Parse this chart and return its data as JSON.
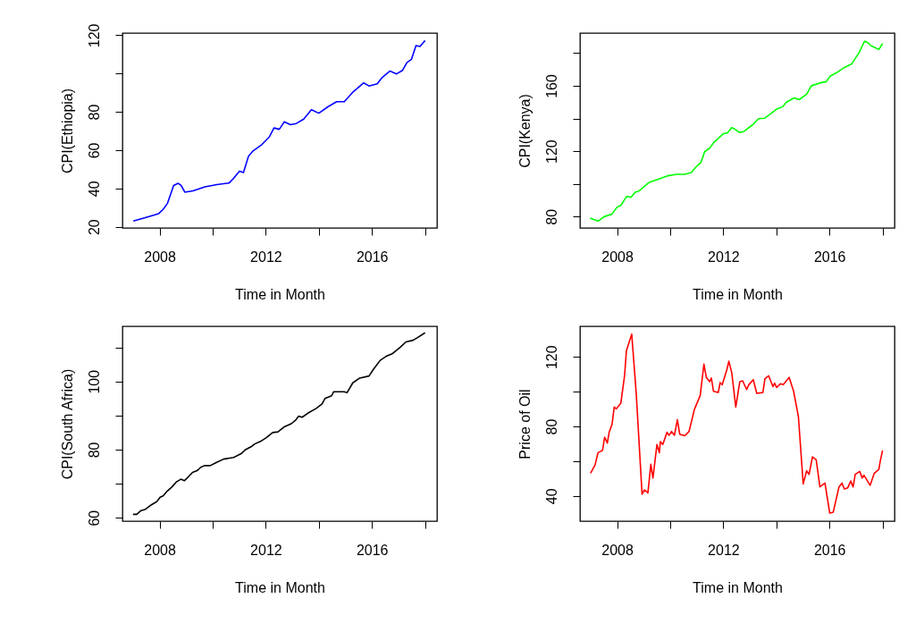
{
  "chart_data": [
    {
      "type": "line",
      "xlabel": "Time in Month",
      "ylabel": "CPI(Ethiopia)",
      "grid": false,
      "marker": "none",
      "line_style": "solid",
      "xlim": [
        2006.6,
        2018.45
      ],
      "ylim": [
        19.4,
        121.1
      ],
      "xticks": [
        2008,
        {
          "value": 2010,
          "label": null
        },
        2012,
        {
          "value": 2014,
          "label": null
        },
        2016,
        {
          "value": 2018,
          "label": null
        }
      ],
      "yticks": [
        20,
        40,
        60,
        80,
        {
          "value": 100,
          "label": null
        },
        120
      ],
      "x": [
        2007.01,
        2007.46,
        2007.97,
        2008.14,
        2008.3,
        2008.53,
        2008.7,
        2008.81,
        2008.95,
        2009.26,
        2009.71,
        2010.16,
        2010.62,
        2010.78,
        2011.01,
        2011.16,
        2011.35,
        2011.52,
        2011.86,
        2012.14,
        2012.31,
        2012.51,
        2012.7,
        2012.93,
        2013.15,
        2013.43,
        2013.72,
        2014.0,
        2014.34,
        2014.67,
        2014.96,
        2015.29,
        2015.69,
        2015.89,
        2016.2,
        2016.37,
        2016.68,
        2016.93,
        2017.15,
        2017.32,
        2017.49,
        2017.66,
        2017.81,
        2018.0
      ],
      "series": [
        {
          "color": "#0000ff",
          "values": [
            23.0,
            24.8,
            26.9,
            29.2,
            32.3,
            41.6,
            42.7,
            41.6,
            38.1,
            38.8,
            40.9,
            42.0,
            42.9,
            45.2,
            49.0,
            48.3,
            56.8,
            59.6,
            63.0,
            67.0,
            71.6,
            70.9,
            74.8,
            73.3,
            73.9,
            76.2,
            81.1,
            79.3,
            82.6,
            85.3,
            85.3,
            90.4,
            95.1,
            93.5,
            94.6,
            97.7,
            101.3,
            99.8,
            101.6,
            105.8,
            107.4,
            114.6,
            114.1,
            117.2
          ]
        }
      ]
    },
    {
      "type": "line",
      "xlabel": "Time in Month",
      "ylabel": "CPI(Kenya)",
      "grid": false,
      "marker": "none",
      "line_style": "solid",
      "xlim": [
        2006.6,
        2018.45
      ],
      "ylim": [
        73.1,
        192.2
      ],
      "xticks": [
        2008,
        {
          "value": 2010,
          "label": null
        },
        2012,
        {
          "value": 2014,
          "label": null
        },
        2016,
        {
          "value": 2018,
          "label": null
        }
      ],
      "yticks": [
        80,
        {
          "value": 100,
          "label": null
        },
        120,
        {
          "value": 140,
          "label": null
        },
        160,
        {
          "value": 180,
          "label": null
        }
      ],
      "x": [
        2006.98,
        2007.29,
        2007.51,
        2007.8,
        2008.0,
        2008.14,
        2008.36,
        2008.53,
        2008.68,
        2008.81,
        2009.21,
        2009.6,
        2009.92,
        2010.23,
        2010.56,
        2010.79,
        2010.96,
        2011.16,
        2011.3,
        2011.47,
        2011.64,
        2012.0,
        2012.15,
        2012.32,
        2012.49,
        2012.6,
        2012.77,
        2013.11,
        2013.33,
        2013.56,
        2013.79,
        2014.01,
        2014.24,
        2014.37,
        2014.67,
        2014.86,
        2015.14,
        2015.31,
        2015.65,
        2015.88,
        2016.02,
        2016.27,
        2016.56,
        2016.84,
        2017.12,
        2017.32,
        2017.46,
        2017.57,
        2017.86,
        2018.0
      ],
      "series": [
        {
          "color": "#00ff00",
          "values": [
            79.1,
            77.3,
            80.0,
            81.5,
            85.8,
            86.9,
            92.4,
            91.9,
            95.0,
            95.5,
            101.0,
            103.2,
            105.0,
            105.9,
            105.9,
            107.0,
            110.1,
            113.2,
            119.8,
            121.6,
            125.3,
            130.7,
            131.1,
            134.4,
            132.9,
            131.5,
            132.0,
            136.2,
            139.9,
            140.2,
            143.0,
            145.7,
            147.2,
            149.9,
            152.6,
            151.5,
            154.8,
            159.9,
            161.8,
            162.5,
            165.8,
            168.0,
            171.2,
            173.4,
            180.4,
            187.3,
            186.2,
            184.4,
            182.2,
            185.8
          ]
        }
      ]
    },
    {
      "type": "line",
      "xlabel": "Time in Month",
      "ylabel": "CPI(South Africa)",
      "grid": false,
      "marker": "none",
      "line_style": "solid",
      "xlim": [
        2006.6,
        2018.45
      ],
      "ylim": [
        59.0,
        116.2
      ],
      "xticks": [
        2008,
        {
          "value": 2010,
          "label": null
        },
        2012,
        {
          "value": 2014,
          "label": null
        },
        2016,
        {
          "value": 2018,
          "label": null
        }
      ],
      "yticks": [
        60,
        {
          "value": 70,
          "label": null
        },
        80,
        {
          "value": 90,
          "label": null
        },
        100,
        {
          "value": 110,
          "label": null
        }
      ],
      "x": [
        2007.0,
        2007.14,
        2007.3,
        2007.47,
        2007.69,
        2007.89,
        2008.02,
        2008.13,
        2008.3,
        2008.46,
        2008.63,
        2008.8,
        2008.94,
        2009.08,
        2009.24,
        2009.41,
        2009.55,
        2009.69,
        2009.91,
        2010.13,
        2010.41,
        2010.79,
        2011.07,
        2011.24,
        2011.46,
        2011.57,
        2011.8,
        2012.02,
        2012.26,
        2012.46,
        2012.68,
        2012.96,
        2013.13,
        2013.24,
        2013.37,
        2013.57,
        2013.9,
        2014.12,
        2014.23,
        2014.48,
        2014.56,
        2014.95,
        2015.06,
        2015.28,
        2015.54,
        2015.89,
        2016.06,
        2016.31,
        2016.56,
        2016.78,
        2017.06,
        2017.28,
        2017.55,
        2017.72,
        2018.0
      ],
      "series": [
        {
          "color": "#000000",
          "values": [
            61.0,
            61.0,
            62.1,
            62.5,
            63.8,
            64.7,
            66.0,
            66.4,
            67.9,
            69.0,
            70.5,
            71.3,
            70.9,
            72.0,
            73.3,
            73.8,
            74.8,
            75.3,
            75.3,
            76.2,
            77.2,
            77.7,
            78.8,
            80.0,
            80.9,
            81.6,
            82.4,
            83.5,
            85.0,
            85.2,
            86.6,
            87.6,
            88.7,
            89.8,
            89.5,
            90.6,
            92.1,
            93.4,
            95.0,
            95.8,
            97.0,
            97.0,
            96.7,
            99.6,
            101.0,
            101.6,
            103.6,
            106.2,
            107.5,
            108.2,
            110.0,
            111.6,
            112.1,
            112.9,
            114.3
          ]
        }
      ]
    },
    {
      "type": "line",
      "xlabel": "Time in Month",
      "ylabel": "Price of Oil",
      "grid": false,
      "marker": "none",
      "line_style": "solid",
      "xlim": [
        2006.6,
        2018.45
      ],
      "ylim": [
        25.5,
        137.6
      ],
      "xticks": [
        2008,
        {
          "value": 2010,
          "label": null
        },
        2012,
        {
          "value": 2014,
          "label": null
        },
        2016,
        {
          "value": 2018,
          "label": null
        }
      ],
      "yticks": [
        40,
        {
          "value": 60,
          "label": null
        },
        80,
        {
          "value": 100,
          "label": null
        },
        120
      ],
      "x": [
        2007.0,
        2007.17,
        2007.28,
        2007.45,
        2007.53,
        2007.63,
        2007.7,
        2007.81,
        2007.89,
        2007.97,
        2008.14,
        2008.28,
        2008.35,
        2008.55,
        2008.72,
        2008.94,
        2009.03,
        2009.16,
        2009.27,
        2009.35,
        2009.5,
        2009.59,
        2009.63,
        2009.72,
        2009.88,
        2009.96,
        2010.05,
        2010.16,
        2010.27,
        2010.36,
        2010.55,
        2010.71,
        2010.91,
        2011.13,
        2011.27,
        2011.36,
        2011.49,
        2011.55,
        2011.63,
        2011.81,
        2011.88,
        2011.96,
        2012.13,
        2012.21,
        2012.32,
        2012.47,
        2012.62,
        2012.73,
        2012.88,
        2012.96,
        2013.13,
        2013.26,
        2013.49,
        2013.57,
        2013.71,
        2013.87,
        2013.93,
        2014.01,
        2014.15,
        2014.26,
        2014.48,
        2014.65,
        2014.83,
        2015.01,
        2015.14,
        2015.23,
        2015.36,
        2015.5,
        2015.64,
        2015.83,
        2016.01,
        2016.14,
        2016.36,
        2016.47,
        2016.56,
        2016.69,
        2016.8,
        2016.89,
        2016.97,
        2017.14,
        2017.23,
        2017.3,
        2017.53,
        2017.69,
        2017.86,
        2017.91,
        2018.0
      ],
      "series": [
        {
          "color": "#ff0000",
          "values": [
            53.1,
            57.8,
            64.9,
            66.2,
            73.8,
            70.4,
            76.6,
            81.3,
            91.1,
            90.1,
            93.4,
            109.1,
            123.4,
            133.1,
            99.0,
            41.0,
            43.5,
            41.8,
            58.2,
            50.3,
            69.6,
            64.9,
            71.3,
            69.6,
            76.6,
            74.9,
            77.1,
            74.9,
            83.9,
            75.5,
            74.6,
            77.1,
            89.7,
            97.8,
            115.8,
            108.2,
            105.7,
            107.9,
            100.2,
            99.5,
            105.2,
            104.0,
            112.4,
            117.5,
            110.8,
            91.1,
            105.7,
            106.2,
            101.2,
            104.0,
            106.9,
            99.0,
            99.5,
            107.4,
            109.1,
            102.9,
            104.9,
            102.4,
            104.5,
            104.0,
            108.2,
            100.2,
            85.5,
            46.9,
            54.5,
            52.4,
            62.5,
            60.8,
            45.2,
            47.4,
            30.1,
            30.6,
            45.2,
            47.4,
            44.0,
            44.7,
            48.6,
            45.2,
            52.4,
            54.1,
            50.3,
            51.9,
            46.1,
            53.1,
            55.3,
            59.8,
            66.2
          ]
        }
      ]
    }
  ]
}
